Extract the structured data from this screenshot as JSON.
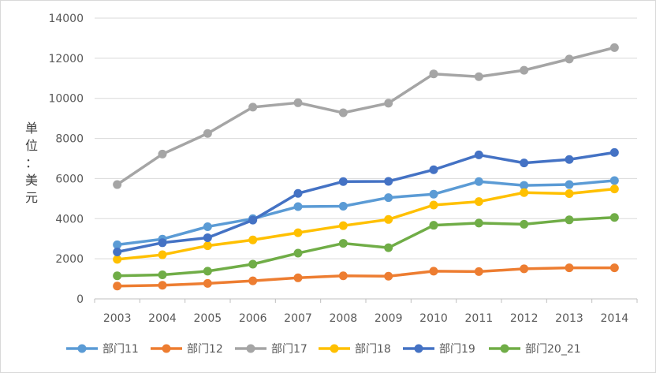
{
  "chart_data": {
    "type": "line",
    "ylabel": "单位：美元",
    "ylim": [
      0,
      14000
    ],
    "yticks": [
      0,
      2000,
      4000,
      6000,
      8000,
      10000,
      12000,
      14000
    ],
    "grid": true,
    "legend_position": "bottom",
    "x": [
      "2003",
      "2004",
      "2005",
      "2006",
      "2007",
      "2008",
      "2009",
      "2010",
      "2011",
      "2012",
      "2013",
      "2014"
    ],
    "series": [
      {
        "name": "部门11",
        "color": "#5b9bd5",
        "values": [
          2700,
          2980,
          3600,
          4000,
          4600,
          4620,
          5050,
          5220,
          5850,
          5660,
          5700,
          5900
        ]
      },
      {
        "name": "部门12",
        "color": "#ed7d31",
        "values": [
          640,
          680,
          770,
          900,
          1050,
          1150,
          1130,
          1380,
          1360,
          1500,
          1550,
          1550
        ]
      },
      {
        "name": "部门17",
        "color": "#a5a5a5",
        "values": [
          5700,
          7220,
          8250,
          9560,
          9780,
          9280,
          9760,
          11220,
          11080,
          11400,
          11960,
          12530
        ]
      },
      {
        "name": "部门18",
        "color": "#ffc000",
        "values": [
          1970,
          2200,
          2650,
          2940,
          3300,
          3650,
          3960,
          4680,
          4850,
          5300,
          5250,
          5480
        ]
      },
      {
        "name": "部门19",
        "color": "#4472c4",
        "values": [
          2340,
          2800,
          3050,
          3930,
          5260,
          5850,
          5860,
          6440,
          7180,
          6780,
          6950,
          7300
        ]
      },
      {
        "name": "部门20_21",
        "color": "#70ad47",
        "values": [
          1150,
          1200,
          1380,
          1730,
          2280,
          2770,
          2550,
          3670,
          3780,
          3720,
          3940,
          4060
        ]
      }
    ]
  }
}
